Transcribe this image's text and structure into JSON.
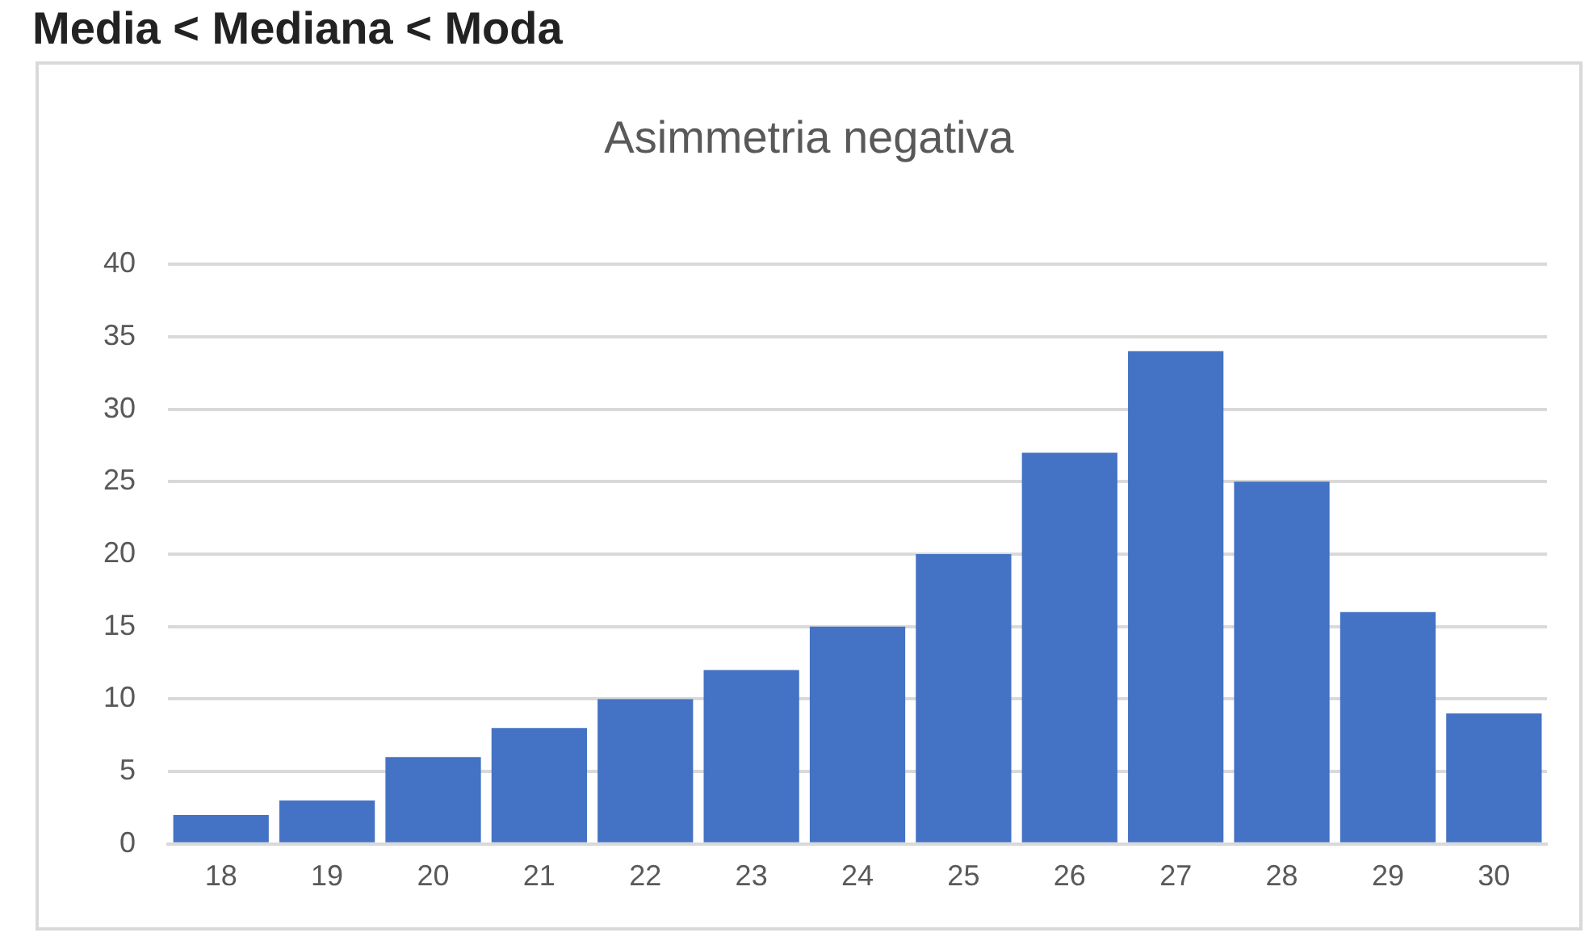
{
  "chart_data": {
    "type": "bar",
    "title": "Asimmetria negativa",
    "categories": [
      "18",
      "19",
      "20",
      "21",
      "22",
      "23",
      "24",
      "25",
      "26",
      "27",
      "28",
      "29",
      "30"
    ],
    "values": [
      2,
      3,
      6,
      8,
      10,
      12,
      15,
      20,
      27,
      34,
      25,
      16,
      9
    ],
    "color": "#4472c4",
    "ylim": [
      0,
      40
    ],
    "yticks": [
      0,
      5,
      10,
      15,
      20,
      25,
      30,
      35,
      40
    ],
    "grid": "y",
    "legend": false,
    "annotations": [
      "Media < Mediana < Moda"
    ]
  }
}
